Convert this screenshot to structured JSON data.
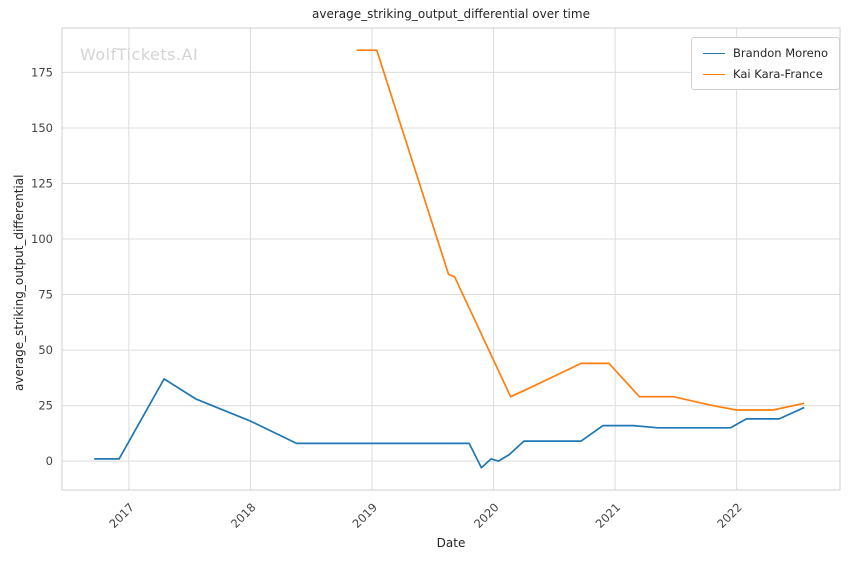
{
  "watermark": "WolfTickets.AI",
  "chart_data": {
    "type": "line",
    "title": "average_striking_output_differential over time",
    "xlabel": "Date",
    "ylabel": "average_striking_output_differential",
    "x_ticks": [
      2017,
      2018,
      2019,
      2020,
      2021,
      2022
    ],
    "y_ticks": [
      0,
      25,
      50,
      75,
      100,
      125,
      150,
      175
    ],
    "xlim": [
      2016.45,
      2022.85
    ],
    "ylim": [
      -13,
      195
    ],
    "grid": true,
    "legend_position": "upper right",
    "colors": {
      "grid": "#dcdcdc",
      "border": "#cfcfcf",
      "tick_text": "#444444"
    },
    "series": [
      {
        "name": "Brandon Moreno",
        "color": "#1f77b4",
        "x": [
          2016.72,
          2016.92,
          2017.29,
          2017.55,
          2018.0,
          2018.38,
          2019.62,
          2019.8,
          2019.9,
          2019.98,
          2020.04,
          2020.13,
          2020.25,
          2020.72,
          2020.9,
          2021.15,
          2021.35,
          2021.95,
          2022.08,
          2022.35,
          2022.55
        ],
        "y": [
          1,
          1,
          37,
          28,
          18,
          8,
          8,
          8,
          -3,
          1,
          0,
          3,
          9,
          9,
          16,
          16,
          15,
          15,
          19,
          19,
          24
        ]
      },
      {
        "name": "Kai Kara-France",
        "color": "#ff7f0e",
        "x": [
          2018.88,
          2019.04,
          2019.63,
          2019.68,
          2020.14,
          2020.3,
          2020.72,
          2020.95,
          2021.2,
          2021.48,
          2021.8,
          2022.0,
          2022.3,
          2022.55
        ],
        "y": [
          185,
          185,
          84,
          83,
          29,
          33,
          44,
          44,
          29,
          29,
          25,
          23,
          23,
          26
        ]
      }
    ]
  }
}
